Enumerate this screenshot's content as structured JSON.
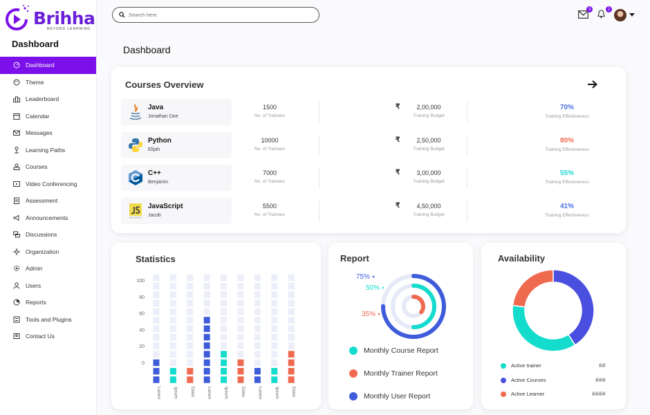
{
  "brand": {
    "name": "Brihha",
    "tagline": "BEYOND LEARNING",
    "color": "#7b10ea"
  },
  "sidebar": {
    "title": "Dashboard",
    "items": [
      {
        "label": "Dashboard",
        "icon": "dashboard-icon",
        "active": true
      },
      {
        "label": "Theme",
        "icon": "palette-icon"
      },
      {
        "label": "Leaderboard",
        "icon": "leaderboard-icon"
      },
      {
        "label": "Calendar",
        "icon": "calendar-icon"
      },
      {
        "label": "Messages",
        "icon": "mail-icon"
      },
      {
        "label": "Learning Paths",
        "icon": "path-icon"
      },
      {
        "label": "Courses",
        "icon": "courses-icon"
      },
      {
        "label": "Video Conferencing",
        "icon": "video-icon"
      },
      {
        "label": "Assessment",
        "icon": "clipboard-icon"
      },
      {
        "label": "Announcements",
        "icon": "megaphone-icon"
      },
      {
        "label": "Discussions",
        "icon": "chat-icon"
      },
      {
        "label": "Organization",
        "icon": "organization-icon"
      },
      {
        "label": "Admin",
        "icon": "admin-icon"
      },
      {
        "label": "Users",
        "icon": "user-icon"
      },
      {
        "label": "Reports",
        "icon": "pie-icon"
      },
      {
        "label": "Tools and Plugins",
        "icon": "tools-icon"
      },
      {
        "label": "Contact Us",
        "icon": "contact-icon"
      }
    ]
  },
  "topbar": {
    "search_placeholder": "Search here",
    "messages_count": "3",
    "notifications_count": "2"
  },
  "page": {
    "title": "Dashboard"
  },
  "courses_overview": {
    "title": "Courses Overview",
    "trainees_label": "No. of Trainees",
    "budget_label": "Training Budget",
    "effectiveness_label": "Training Effectiveness",
    "currency": "₹",
    "rows": [
      {
        "name": "Java",
        "author": "Jonathan Doe",
        "trainees": "1500",
        "budget": "2,00,000",
        "effectiveness": "70%",
        "eff_color": "#4a6ee0",
        "icon": "java-icon"
      },
      {
        "name": "Python",
        "author": "Elijah",
        "trainees": "10000",
        "budget": "2,50,000",
        "effectiveness": "80%",
        "eff_color": "#f06a50",
        "icon": "python-icon"
      },
      {
        "name": "C++",
        "author": "Benjamin",
        "trainees": "7000",
        "budget": "3,00,000",
        "effectiveness": "55%",
        "eff_color": "#19d6cf",
        "icon": "cpp-icon"
      },
      {
        "name": "JavaScript",
        "author": "Jacob",
        "trainees": "5500",
        "budget": "4,50,000",
        "effectiveness": "41%",
        "eff_color": "#4a6ee0",
        "icon": "javascript-icon"
      }
    ]
  },
  "statistics": {
    "title": "Statistics"
  },
  "chart_data": [
    {
      "type": "bar",
      "title": "Statistics",
      "ylim": [
        0,
        100
      ],
      "yticks": [
        "100",
        "80",
        "60",
        "40",
        "20",
        "0"
      ],
      "categories": [
        "Lorem",
        "Ipsum",
        "Dolor",
        "Lorem",
        "Ipsum",
        "Dolor",
        "Lorem",
        "Ipsum",
        "Dolor"
      ],
      "values": [
        30,
        20,
        20,
        80,
        40,
        30,
        20,
        20,
        40
      ],
      "colors": [
        "#3f5cdb",
        "#14dccd",
        "#f06a50",
        "#3f5cdb",
        "#14dccd",
        "#f06a50",
        "#3f5cdb",
        "#14dccd",
        "#f06a50"
      ],
      "track_color": "#eceef9"
    },
    {
      "type": "radial",
      "title": "Report",
      "series": [
        {
          "name": "Monthly Course Report",
          "value": 50,
          "color": "#14dccd"
        },
        {
          "name": "Monthly Trainer Report",
          "value": 35,
          "color": "#f06a50"
        },
        {
          "name": "Monthly User Report",
          "value": 75,
          "color": "#3f5cdb"
        }
      ],
      "labels": [
        "75%",
        "50%",
        "35%"
      ]
    },
    {
      "type": "pie",
      "title": "Availability",
      "series": [
        {
          "name": "Active trainer",
          "value": 36,
          "color": "#14dccd",
          "display": "##"
        },
        {
          "name": "Active Courses",
          "value": 41,
          "color": "#4a4fe0",
          "display": "###"
        },
        {
          "name": "Active Learner",
          "value": 23,
          "color": "#f06a50",
          "display": "####"
        }
      ]
    }
  ]
}
